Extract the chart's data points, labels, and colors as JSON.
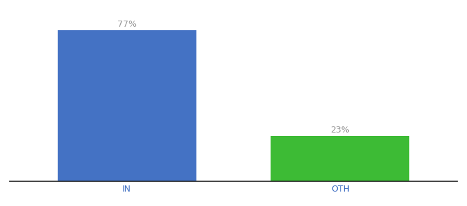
{
  "categories": [
    "IN",
    "OTH"
  ],
  "values": [
    77,
    23
  ],
  "bar_colors": [
    "#4472c4",
    "#3dbb35"
  ],
  "label_texts": [
    "77%",
    "23%"
  ],
  "background_color": "#ffffff",
  "label_color": "#999999",
  "tick_label_color": "#4472c4",
  "bar_width": 0.65,
  "ylim": [
    0,
    84
  ],
  "label_fontsize": 9,
  "tick_fontsize": 9
}
